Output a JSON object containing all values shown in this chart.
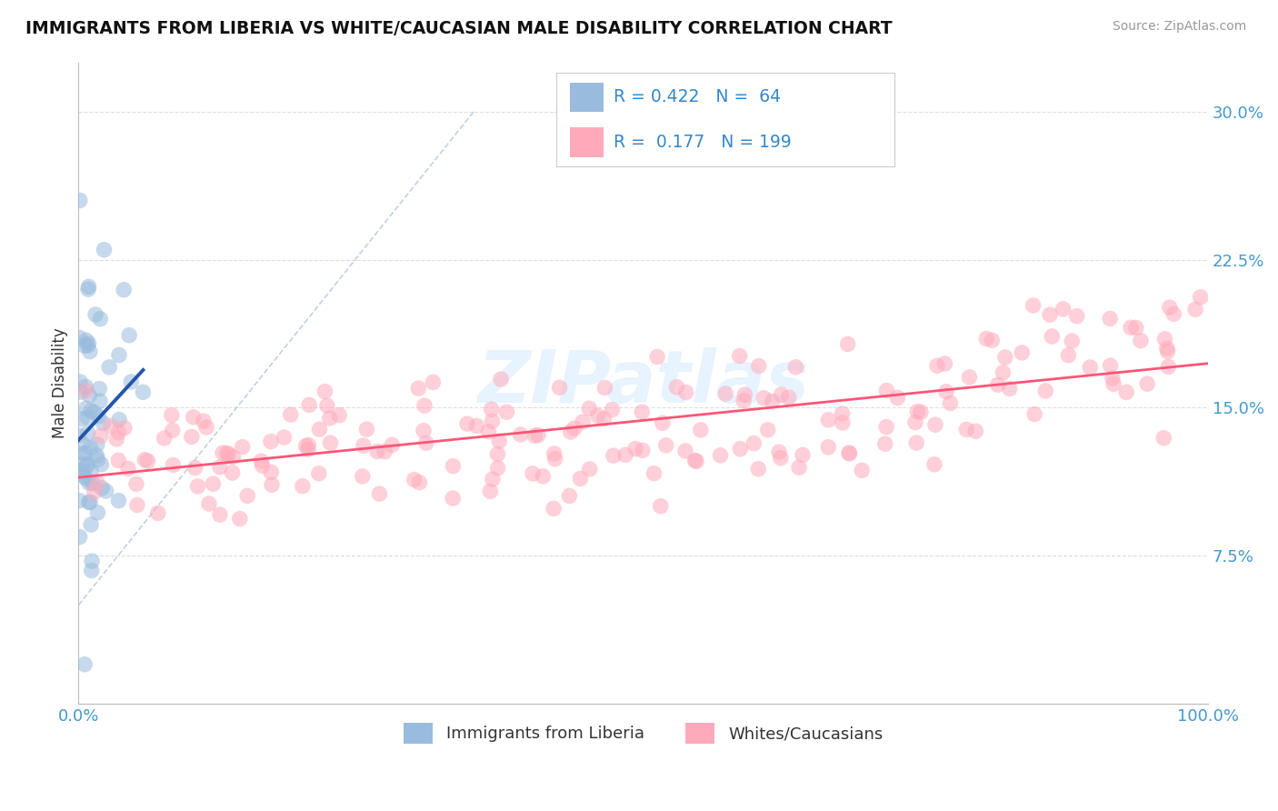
{
  "title": "IMMIGRANTS FROM LIBERIA VS WHITE/CAUCASIAN MALE DISABILITY CORRELATION CHART",
  "source": "Source: ZipAtlas.com",
  "ylabel": "Male Disability",
  "xmin": 0.0,
  "xmax": 100.0,
  "ymin": 0.0,
  "ymax": 32.5,
  "yticks": [
    7.5,
    15.0,
    22.5,
    30.0
  ],
  "ytick_labels": [
    "7.5%",
    "15.0%",
    "22.5%",
    "30.0%"
  ],
  "xtick_labels": [
    "0.0%",
    "100.0%"
  ],
  "blue_color": "#99BBDD",
  "pink_color": "#FFAABB",
  "blue_line_color": "#2255AA",
  "pink_line_color": "#FF5577",
  "ref_line_color": "#BBCCDD",
  "watermark": "ZIPatlas",
  "watermark_color": "#DDEEFF",
  "background_color": "#FFFFFF",
  "title_color": "#111111",
  "axis_label_color": "#333333",
  "tick_label_color": "#4499CC",
  "legend_text_color": "#3388CC",
  "grid_color": "#DDDDDD",
  "source_color": "#999999"
}
